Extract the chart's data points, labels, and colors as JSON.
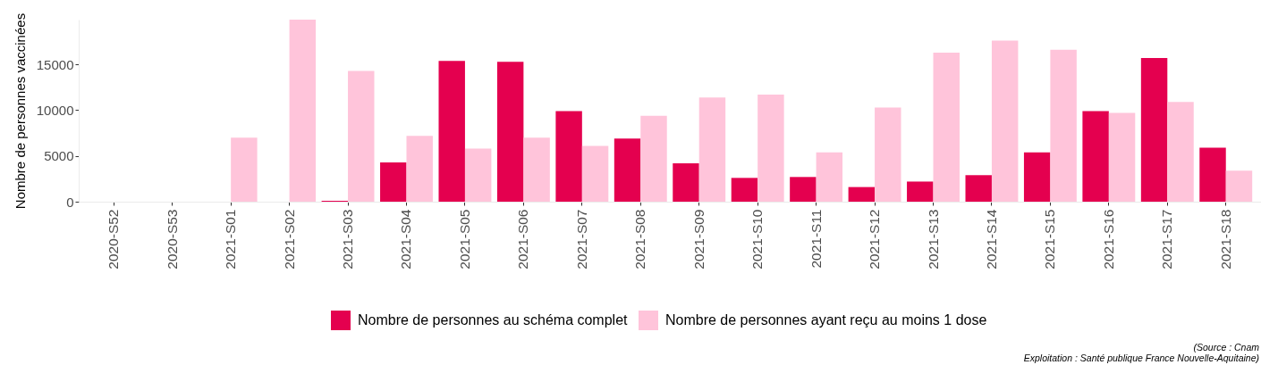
{
  "chart_data": {
    "type": "bar",
    "ylabel": "Nombre de personnes vaccinées",
    "categories": [
      "2020-S52",
      "2020-S53",
      "2021-S01",
      "2021-S02",
      "2021-S03",
      "2021-S04",
      "2021-S05",
      "2021-S06",
      "2021-S07",
      "2021-S08",
      "2021-S09",
      "2021-S10",
      "2021-S11",
      "2021-S12",
      "2021-S13",
      "2021-S14",
      "2021-S15",
      "2021-S16",
      "2021-S17",
      "2021-S18"
    ],
    "series": [
      {
        "name": "Nombre de personnes au schéma complet",
        "color": "#e4004f",
        "values": [
          null,
          null,
          null,
          null,
          100,
          4300,
          15400,
          15300,
          9900,
          6900,
          4200,
          2600,
          2700,
          1600,
          2200,
          2900,
          5400,
          9900,
          15700,
          5900
        ]
      },
      {
        "name": "Nombre de personnes ayant reçu au moins 1 dose",
        "color": "#ffc4da",
        "values": [
          null,
          null,
          7000,
          19900,
          14300,
          7200,
          5800,
          7000,
          6100,
          9400,
          11400,
          11700,
          5400,
          10300,
          16300,
          17600,
          16600,
          9700,
          10900,
          3400
        ]
      }
    ],
    "ylim": [
      0,
      19900
    ],
    "yticks": [
      0,
      5000,
      10000,
      15000
    ],
    "grid": false,
    "legend": "bottom",
    "annotations": [
      "(Source : Cnam",
      "Exploitation : Santé publique France Nouvelle-Aquitaine)"
    ]
  }
}
